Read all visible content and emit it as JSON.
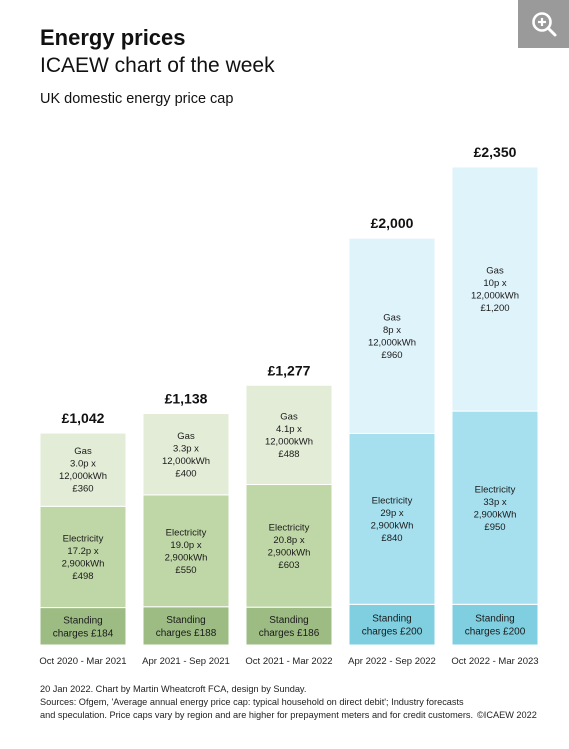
{
  "header": {
    "title": "Energy prices",
    "subtitle": "ICAEW chart of the week"
  },
  "chart_data": {
    "type": "bar",
    "stacked": true,
    "title": "UK domestic energy price cap",
    "categories": [
      "Oct 2020 - Mar 2021",
      "Apr 2021 - Sep 2021",
      "Oct 2021 - Mar 2022",
      "Apr 2022 - Sep 2022",
      "Oct 2022 - Mar 2023"
    ],
    "totals": [
      1042,
      1138,
      1277,
      2000,
      2350
    ],
    "total_labels": [
      "£1,042",
      "£1,138",
      "£1,277",
      "£2,000",
      "£2,350"
    ],
    "series": [
      {
        "key": "standing",
        "values": [
          184,
          188,
          186,
          200,
          200
        ],
        "labels": [
          [
            "Standing",
            "charges £184"
          ],
          [
            "Standing",
            "charges £188"
          ],
          [
            "Standing",
            "charges £186"
          ],
          [
            "Standing",
            "charges £200"
          ],
          [
            "Standing",
            "charges £200"
          ]
        ]
      },
      {
        "key": "electricity",
        "values": [
          498,
          550,
          603,
          840,
          950
        ],
        "labels": [
          [
            "Electricity",
            "17.2p x",
            "2,900kWh",
            "£498"
          ],
          [
            "Electricity",
            "19.0p x",
            "2,900kWh",
            "£550"
          ],
          [
            "Electricity",
            "20.8p x",
            "2,900kWh",
            "£603"
          ],
          [
            "Electricity",
            "29p x",
            "2,900kWh",
            "£840"
          ],
          [
            "Electricity",
            "33p x",
            "2,900kWh",
            "£950"
          ]
        ]
      },
      {
        "key": "gas",
        "values": [
          360,
          400,
          488,
          960,
          1200
        ],
        "labels": [
          [
            "Gas",
            "3.0p x",
            "12,000kWh",
            "£360"
          ],
          [
            "Gas",
            "3.3p x",
            "12,000kWh",
            "£400"
          ],
          [
            "Gas",
            "4.1p x",
            "12,000kWh",
            "£488"
          ],
          [
            "Gas",
            "8p x",
            "12,000kWh",
            "£960"
          ],
          [
            "Gas",
            "10p x",
            "12,000kWh",
            "£1,200"
          ]
        ]
      }
    ],
    "colors": {
      "actual": {
        "standing": "#9dbc84",
        "electricity": "#bfd7a6",
        "gas": "#e3ecd6"
      },
      "forecast": {
        "standing": "#7fcfe0",
        "electricity": "#a6e0ef",
        "gas": "#dff3fa"
      }
    },
    "forecast_from_index": 3,
    "ylim": [
      0,
      2350
    ],
    "grid": false
  },
  "footer": {
    "line1": "20 Jan 2022.  Chart by Martin Wheatcroft FCA, design by Sunday.",
    "line2": "Sources: Ofgem, 'Average annual energy price cap: typical household on direct debit'; Industry forecasts",
    "line3": "and speculation. Price caps vary by region and are higher for prepayment meters and for credit customers.",
    "copyright": "©ICAEW 2022"
  }
}
